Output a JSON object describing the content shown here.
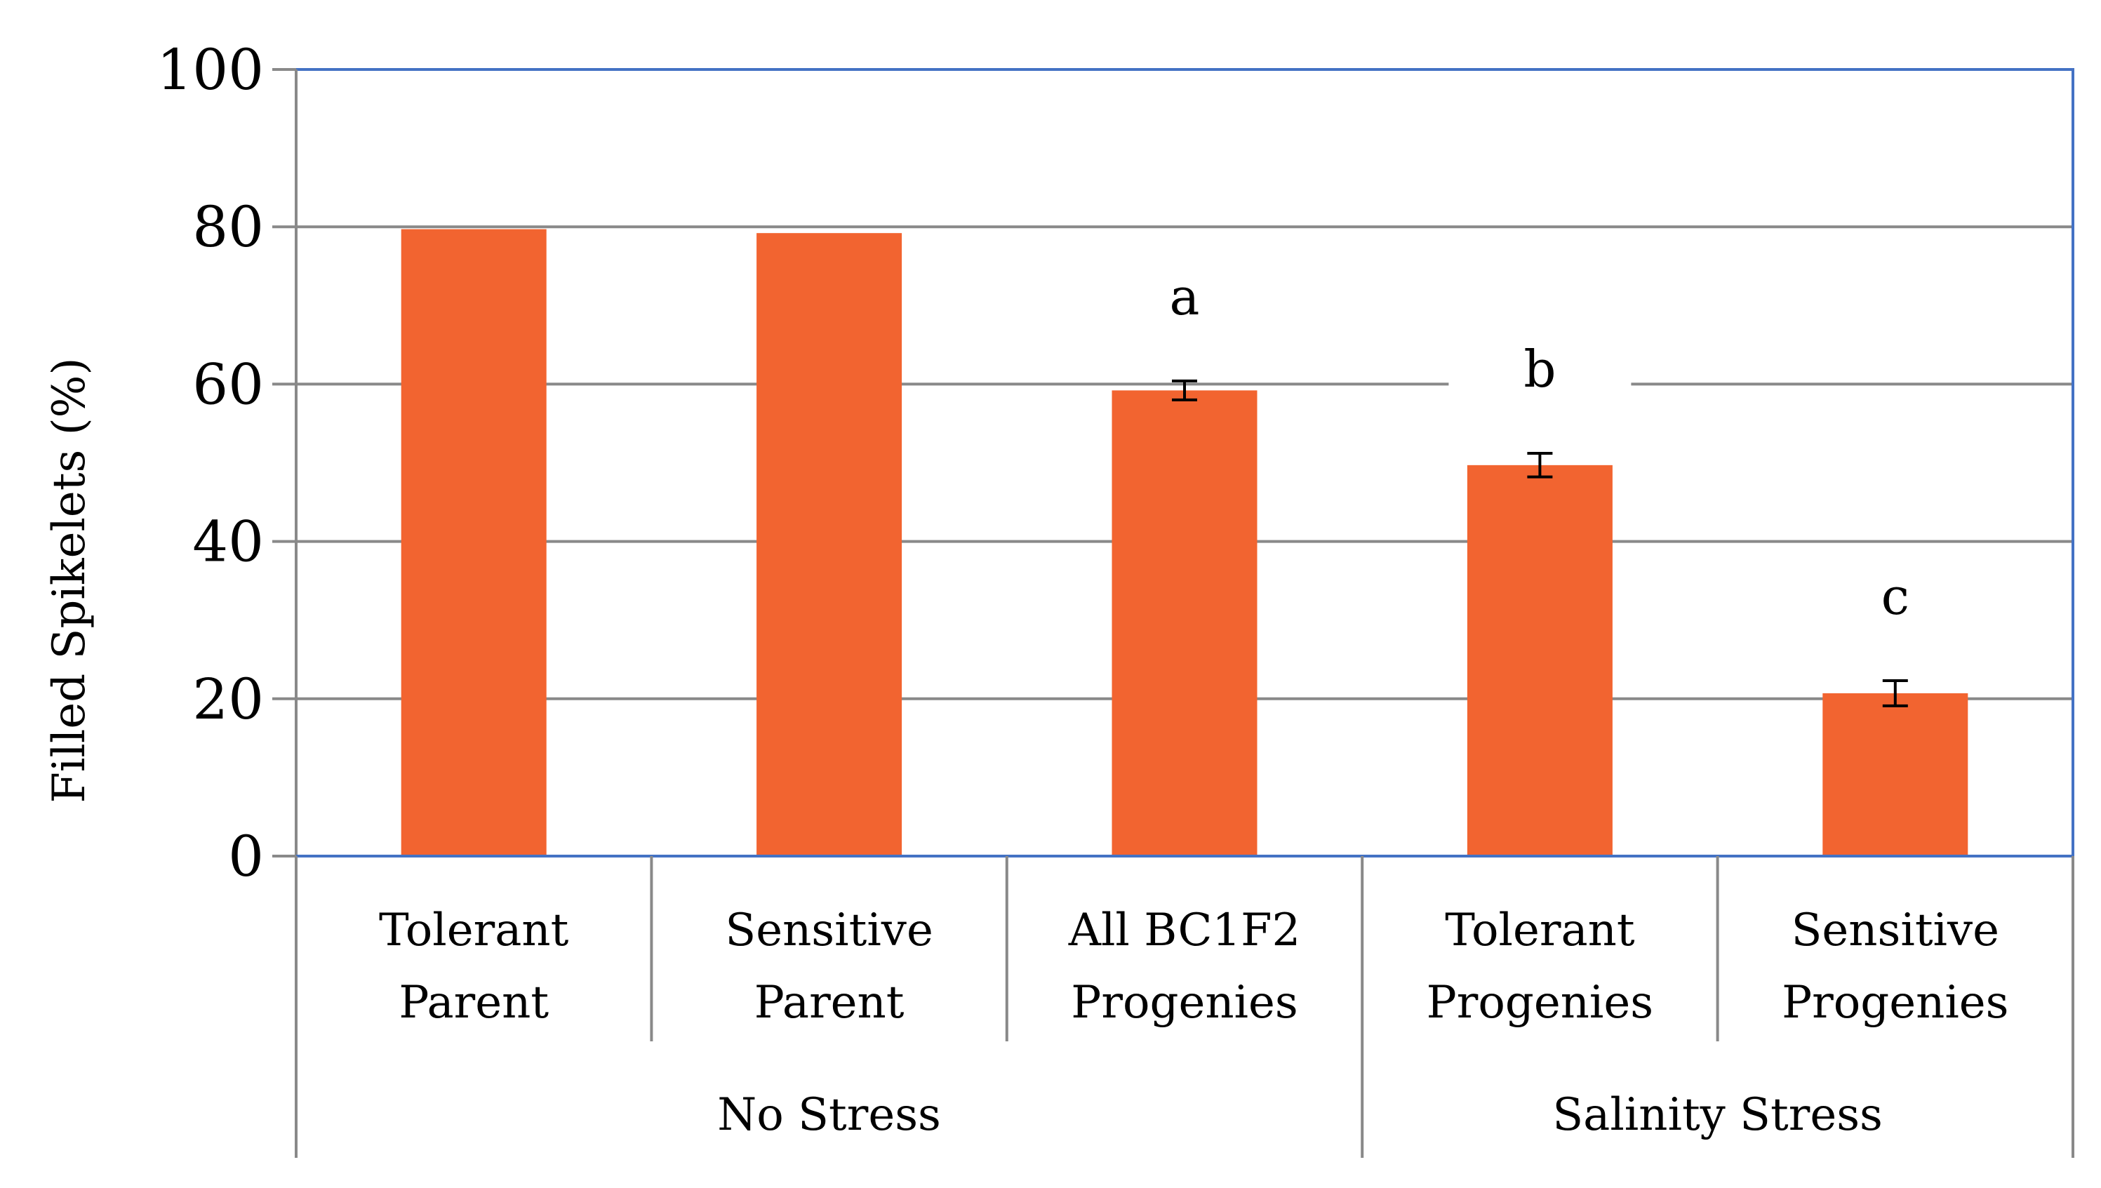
{
  "chart_data": {
    "type": "bar",
    "title": "",
    "ylabel": "Filled Spikelets (%)",
    "xlabel": "",
    "ylim": [
      0,
      100
    ],
    "yticks": [
      0,
      20,
      40,
      60,
      80,
      100
    ],
    "grid": true,
    "categories": [
      {
        "line1": "Tolerant",
        "line2": "Parent"
      },
      {
        "line1": "Sensitive",
        "line2": "Parent"
      },
      {
        "line1": "All BC1F2",
        "line2": "Progenies"
      },
      {
        "line1": "Tolerant",
        "line2": "Progenies"
      },
      {
        "line1": "Sensitive",
        "line2": "Progenies"
      }
    ],
    "values": [
      79.7,
      79.2,
      59.2,
      49.7,
      20.7
    ],
    "errors": [
      null,
      null,
      1.2,
      1.5,
      1.6
    ],
    "significance": [
      null,
      null,
      "a",
      "b",
      "c"
    ],
    "groups": [
      {
        "label": "No Stress",
        "count": 3
      },
      {
        "label": "Salinity Stress",
        "count": 2
      }
    ],
    "bar_color": "#F26430",
    "grid_color": "#898989",
    "frame_color": "#4472C4"
  }
}
